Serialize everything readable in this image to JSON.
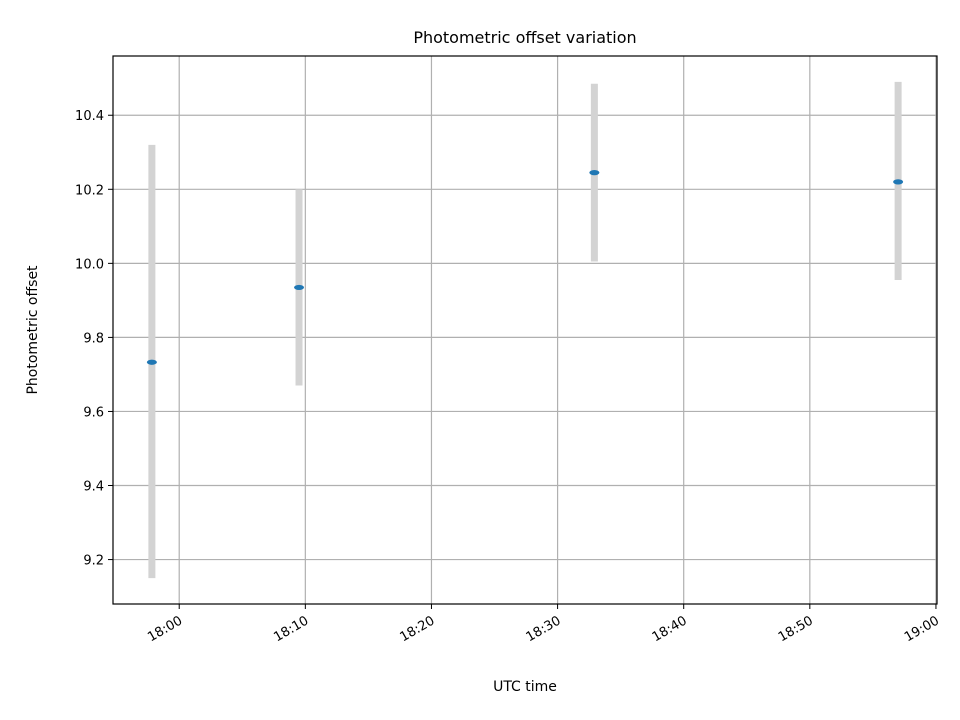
{
  "chart_data": {
    "type": "scatter",
    "title": "Photometric offset variation",
    "xlabel": "UTC time",
    "ylabel": "Photometric offset",
    "x_ticks": [
      "18:00",
      "18:10",
      "18:20",
      "18:30",
      "18:40",
      "18:50",
      "19:00"
    ],
    "x_tick_minutes": [
      0,
      10,
      20,
      30,
      40,
      50,
      60
    ],
    "y_ticks": [
      9.2,
      9.4,
      9.6,
      9.8,
      10.0,
      10.2,
      10.4
    ],
    "y_tick_labels": [
      "9.2",
      "9.4",
      "9.6",
      "9.8",
      "10.0",
      "10.2",
      "10.4"
    ],
    "xlim": [
      "17:54:45",
      "19:00:05"
    ],
    "ylim": [
      9.08,
      10.56
    ],
    "grid": true,
    "series": [
      {
        "x": [
          "17:57:50",
          "18:09:30",
          "18:32:55",
          "18:57:00"
        ],
        "y": [
          9.733,
          9.935,
          10.245,
          10.22
        ],
        "yerr_low": [
          9.15,
          9.67,
          10.005,
          9.955
        ],
        "yerr_high": [
          10.32,
          10.2,
          10.485,
          10.49
        ],
        "color": "#1f77b4",
        "error_color": "#d3d3d3"
      }
    ]
  }
}
